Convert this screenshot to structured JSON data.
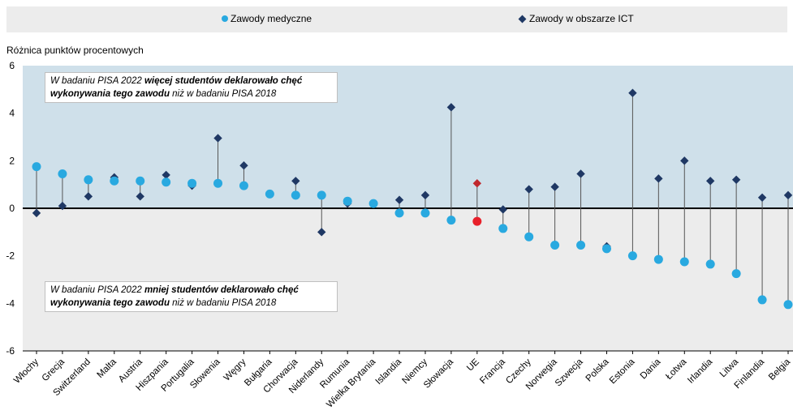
{
  "legend": {
    "medical_label": "Zawody medyczne",
    "ict_label": "Zawody w obszarze ICT"
  },
  "colors": {
    "medical": "#29a9e0",
    "ict": "#1f3864",
    "highlight_medical": "#e8202a",
    "highlight_ict": "#c0282d",
    "band_positive": "#cfe0ea",
    "band_negative": "#ececec"
  },
  "annotations": {
    "top": {
      "pre": "W badaniu PISA 2022 ",
      "bold": "więcej studentów deklarowało chęć wykonywania tego zawodu",
      "post": " niż w badaniu PISA 2018"
    },
    "bottom": {
      "pre": "W badaniu PISA 2022 ",
      "bold": "mniej studentów deklarowało chęć wykonywania tego zawodu",
      "post": " niż w badaniu PISA 2018"
    }
  },
  "chart_data": {
    "type": "scatter",
    "ylabel": "Różnica punktów procentowych",
    "ylim": [
      -6,
      6
    ],
    "yticks": [
      6,
      4,
      2,
      0,
      -2,
      -4,
      -6
    ],
    "grid": false,
    "legend_position": "top",
    "categories": [
      "Włochy",
      "Grecja",
      "Switzerland",
      "Malta",
      "Austria",
      "Hiszpania",
      "Portugalia",
      "Słowenia",
      "Węgry",
      "Bułgaria",
      "Chorwacja",
      "Niderlandy",
      "Rumunia",
      "Wielka Brytania",
      "Islandia",
      "Niemcy",
      "Słowacja",
      "UE",
      "Francja",
      "Czechy",
      "Norwegia",
      "Szwecja",
      "Polska",
      "Estonia",
      "Dania",
      "Łotwa",
      "Irlandia",
      "Litwa",
      "Finlandia",
      "Belgia"
    ],
    "highlight_index": 17,
    "series": [
      {
        "name": "Zawody medyczne",
        "values": [
          1.75,
          1.45,
          1.2,
          1.15,
          1.15,
          1.1,
          1.05,
          1.05,
          0.95,
          0.6,
          0.55,
          0.55,
          0.3,
          0.2,
          -0.2,
          -0.2,
          -0.5,
          -0.55,
          -0.85,
          -1.2,
          -1.55,
          -1.55,
          -1.7,
          -2.0,
          -2.15,
          -2.25,
          -2.35,
          -2.75,
          -3.85,
          -4.05
        ]
      },
      {
        "name": "Zawody w obszarze ICT",
        "values": [
          -0.2,
          0.1,
          0.5,
          1.3,
          0.5,
          1.4,
          0.95,
          2.95,
          1.8,
          0.6,
          1.15,
          -1.0,
          0.2,
          0.2,
          0.35,
          0.55,
          4.25,
          1.05,
          -0.05,
          0.8,
          0.9,
          1.45,
          -1.6,
          4.85,
          1.25,
          2.0,
          1.15,
          1.2,
          0.45,
          0.55
        ]
      }
    ]
  }
}
